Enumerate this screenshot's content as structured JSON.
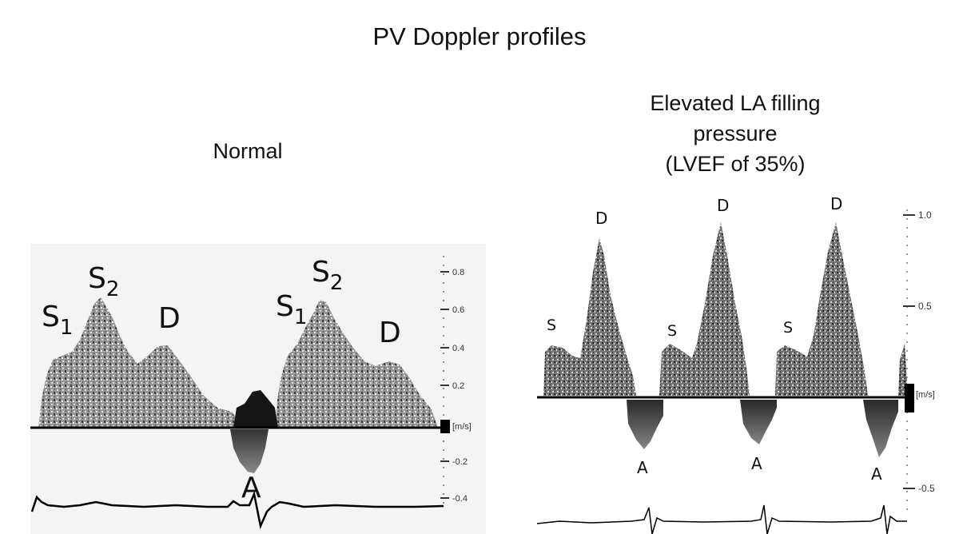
{
  "title": "PV Doppler profiles",
  "left_panel": {
    "caption": "Normal",
    "waves": {
      "s1": "S",
      "s1_sub": "1",
      "s2": "S",
      "s2_sub": "2",
      "d": "D",
      "a": "A"
    },
    "scale": {
      "ticks": [
        "0.8",
        "0.6",
        "0.4",
        "0.2",
        "[m/s]",
        "-0.2",
        "-0.4"
      ]
    }
  },
  "right_panel": {
    "caption_lines": [
      "Elevated LA filling",
      "pressure",
      "(LVEF of 35%)"
    ],
    "waves": {
      "s": "S",
      "d": "D",
      "a": "A"
    },
    "scale": {
      "ticks": [
        "1.0",
        "0.5",
        "[m/s]",
        "-0.5"
      ]
    }
  }
}
